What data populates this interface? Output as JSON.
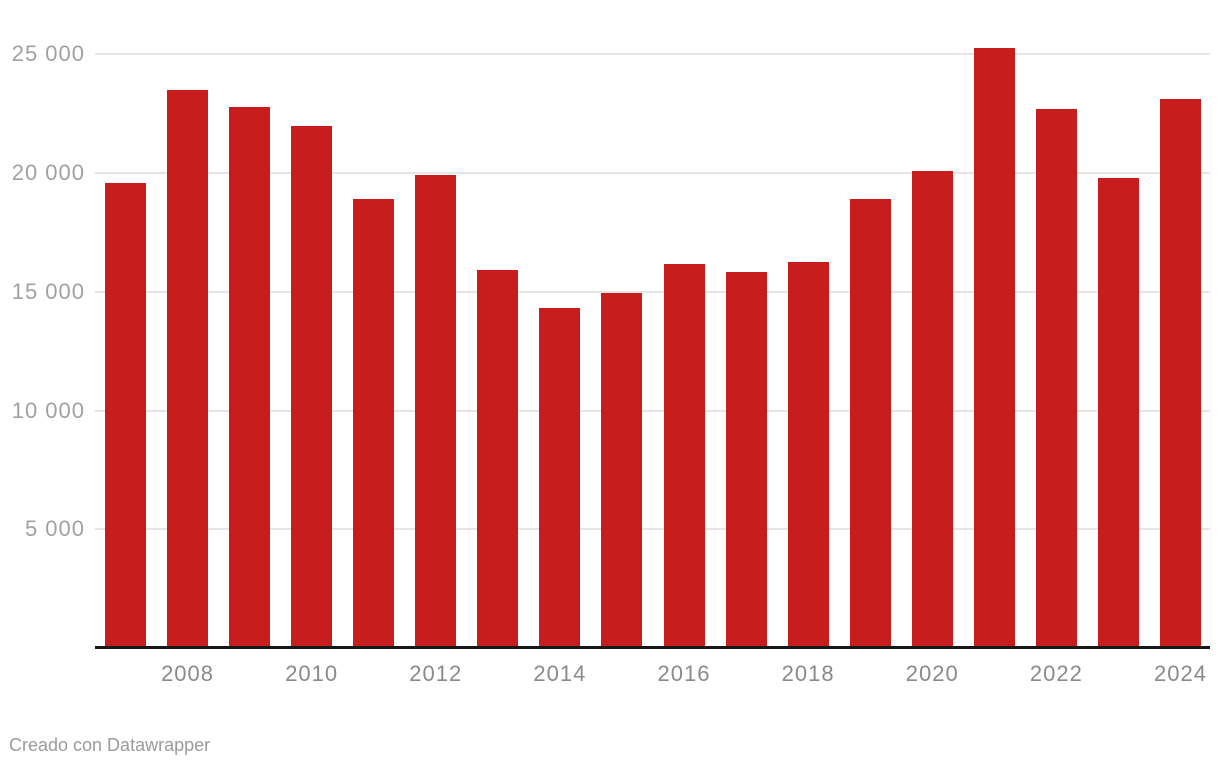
{
  "chart_data": {
    "type": "bar",
    "title": "",
    "xlabel": "",
    "ylabel": "",
    "categories": [
      "2007",
      "2008",
      "2009",
      "2010",
      "2011",
      "2012",
      "2013",
      "2014",
      "2015",
      "2016",
      "2017",
      "2018",
      "2019",
      "2020",
      "2021",
      "2022",
      "2023",
      "2024"
    ],
    "values": [
      19600,
      23500,
      22800,
      22000,
      18900,
      19900,
      15900,
      14300,
      14950,
      16150,
      15850,
      16250,
      18900,
      20100,
      25250,
      22700,
      19800,
      23100
    ],
    "x_tick_labels": [
      "2008",
      "2010",
      "2012",
      "2014",
      "2016",
      "2018",
      "2020",
      "2022",
      "2024"
    ],
    "y_ticks": [
      {
        "value": 5000,
        "label": "5 000"
      },
      {
        "value": 10000,
        "label": "10 000"
      },
      {
        "value": 15000,
        "label": "15 000"
      },
      {
        "value": 20000,
        "label": "20 000"
      },
      {
        "value": 25000,
        "label": "25 000"
      }
    ],
    "ylim": [
      0,
      25500
    ],
    "grid": true,
    "legend": false
  },
  "colors": {
    "bar": "#c71e1d",
    "gridline": "#e6e6e6",
    "axis_line": "#171717",
    "y_tick_label": "#a1a1a1",
    "x_tick_label": "#8a8a8a",
    "footer_text": "#9b9b9b"
  },
  "footer": {
    "attribution": "Creado con Datawrapper"
  }
}
